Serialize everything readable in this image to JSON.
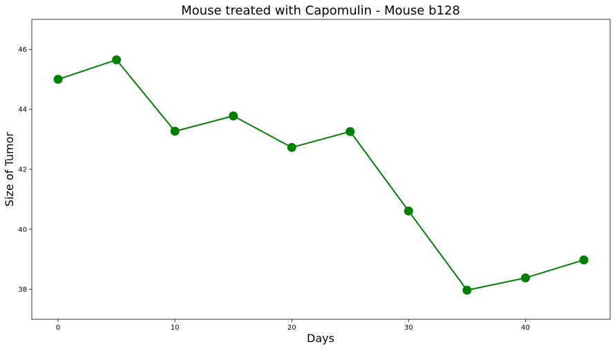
{
  "chart_data": {
    "type": "line",
    "title": "Mouse treated with Capomulin - Mouse b128",
    "xlabel": "Days",
    "ylabel": "Size of Tumor",
    "xlim": [
      -2.25,
      47.25
    ],
    "ylim": [
      37.0,
      47.0
    ],
    "xticks": [
      0,
      10,
      20,
      30,
      40
    ],
    "yticks": [
      38,
      40,
      42,
      44,
      46
    ],
    "grid": false,
    "legend": "none",
    "series": [
      {
        "color": "#008000",
        "marker": "circle",
        "x": [
          0,
          5,
          10,
          15,
          20,
          25,
          30,
          35,
          40,
          45
        ],
        "y": [
          45.0,
          45.65,
          43.27,
          43.78,
          42.73,
          43.26,
          40.61,
          37.97,
          38.38,
          38.98
        ]
      }
    ]
  }
}
